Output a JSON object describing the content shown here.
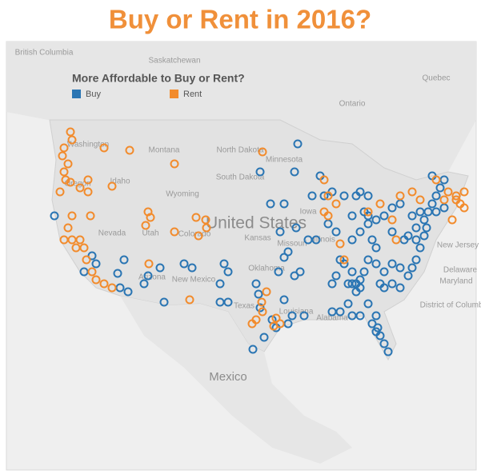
{
  "title": "Buy or Rent in 2016?",
  "legend": {
    "title": "More Affordable to Buy or Rent?",
    "items": [
      {
        "name": "Buy",
        "color": "#2a75b3"
      },
      {
        "name": "Rent",
        "color": "#f28b2c"
      }
    ]
  },
  "map_labels": [
    "British Columbia",
    "Saskatchewan",
    "Quebec",
    "Ontario",
    "Montana",
    "North Dakota",
    "Minnesota",
    "South Dakota",
    "Wyoming",
    "Idaho",
    "Washington",
    "Oregon",
    "Nevada",
    "Utah",
    "Colorado",
    "United States",
    "Arizona",
    "New Mexico",
    "Kansas",
    "Oklahoma",
    "Texas",
    "Iowa",
    "Missouri",
    "Illinois",
    "Louisiana",
    "Alabama",
    "Mexico",
    "New Jersey",
    "Delaware",
    "Maryland",
    "District of Columbia"
  ]
}
